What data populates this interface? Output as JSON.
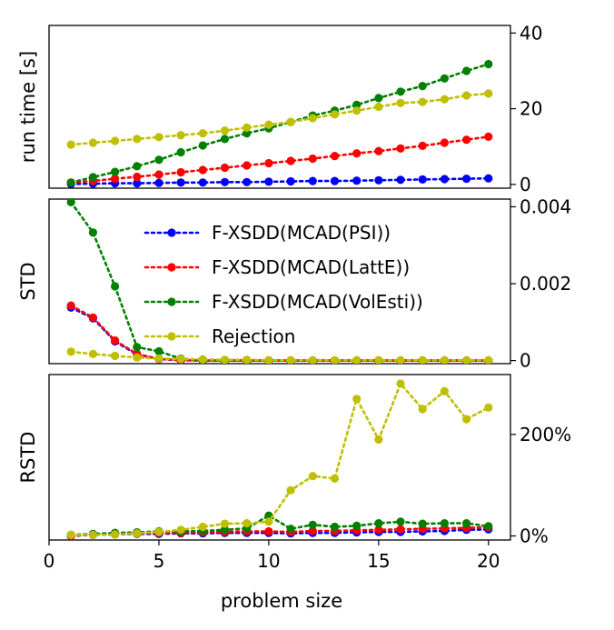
{
  "x_axis": {
    "label": "problem size",
    "ticks": [
      0,
      5,
      10,
      15,
      20
    ],
    "range": [
      0,
      21
    ]
  },
  "legend": {
    "placement": "upper right of middle panel",
    "entries": [
      {
        "name": "F-XSDD(MCAD(PSI))",
        "color": "#0000ff"
      },
      {
        "name": "F-XSDD(MCAD(LattE))",
        "color": "#ff0000"
      },
      {
        "name": "F-XSDD(MCAD(VolEsti))",
        "color": "#008000"
      },
      {
        "name": "Rejection",
        "color": "#bfbf00"
      }
    ]
  },
  "chart_data": [
    {
      "type": "line",
      "ylabel": "run time [s]",
      "yaxis_side": "right",
      "ylim": [
        -1,
        42
      ],
      "yticks": [
        0,
        20,
        40
      ],
      "ytick_labels": [
        "0",
        "20",
        "40"
      ],
      "x": [
        1,
        2,
        3,
        4,
        5,
        6,
        7,
        8,
        9,
        10,
        11,
        12,
        13,
        14,
        15,
        16,
        17,
        18,
        19,
        20
      ],
      "series": [
        {
          "name": "F-XSDD(MCAD(PSI))",
          "color": "#0000ff",
          "values": [
            0.1,
            0.2,
            0.3,
            0.3,
            0.4,
            0.5,
            0.5,
            0.6,
            0.6,
            0.7,
            0.8,
            0.9,
            0.9,
            1.0,
            1.1,
            1.2,
            1.3,
            1.4,
            1.5,
            1.6
          ]
        },
        {
          "name": "F-XSDD(MCAD(LattE))",
          "color": "#ff0000",
          "values": [
            0.5,
            0.9,
            1.5,
            2.0,
            2.6,
            3.2,
            3.8,
            4.4,
            5.0,
            5.6,
            6.2,
            6.8,
            7.5,
            8.2,
            8.8,
            9.5,
            10.2,
            11.0,
            11.8,
            12.6
          ]
        },
        {
          "name": "F-XSDD(MCAD(VolEsti))",
          "color": "#008000",
          "values": [
            0.5,
            1.9,
            3.3,
            4.8,
            6.5,
            8.5,
            10.3,
            12.0,
            13.5,
            14.8,
            16.5,
            18.2,
            19.5,
            21.0,
            22.8,
            24.5,
            26.0,
            28.0,
            30.0,
            31.8
          ]
        },
        {
          "name": "Rejection",
          "color": "#bfbf00",
          "values": [
            10.5,
            11.0,
            11.5,
            12.0,
            12.5,
            13.0,
            13.5,
            14.2,
            15.0,
            15.8,
            16.5,
            17.5,
            18.5,
            19.5,
            20.5,
            21.5,
            21.8,
            22.5,
            23.5,
            24.0
          ]
        }
      ]
    },
    {
      "type": "line",
      "ylabel": "STD",
      "yaxis_side": "right",
      "ylim": [
        -8e-05,
        0.0042
      ],
      "yticks": [
        0,
        0.002,
        0.004
      ],
      "ytick_labels": [
        "0",
        "0.002",
        "0.004"
      ],
      "x": [
        1,
        2,
        3,
        4,
        5,
        6,
        7,
        8,
        9,
        10,
        11,
        12,
        13,
        14,
        15,
        16,
        17,
        18,
        19,
        20
      ],
      "series": [
        {
          "name": "F-XSDD(MCAD(PSI))",
          "color": "#0000ff",
          "values": [
            0.00138,
            0.0011,
            0.0005,
            0.00016,
            4e-05,
            1e-05,
            0,
            0,
            0,
            0,
            0,
            0,
            0,
            0,
            0,
            0,
            0,
            0,
            0,
            0
          ]
        },
        {
          "name": "F-XSDD(MCAD(LattE))",
          "color": "#ff0000",
          "values": [
            0.00143,
            0.00112,
            0.00052,
            0.00017,
            4e-05,
            1e-05,
            0,
            0,
            0,
            0,
            0,
            0,
            0,
            0,
            0,
            0,
            0,
            0,
            0,
            0
          ]
        },
        {
          "name": "F-XSDD(MCAD(VolEsti))",
          "color": "#008000",
          "values": [
            0.00412,
            0.00333,
            0.00193,
            0.00035,
            0.00024,
            5e-05,
            1e-05,
            0,
            0,
            0,
            0,
            0,
            0,
            0,
            0,
            0,
            0,
            0,
            0,
            0
          ]
        },
        {
          "name": "Rejection",
          "color": "#bfbf00",
          "values": [
            0.00023,
            0.00017,
            0.00012,
            8e-05,
            5e-05,
            4e-05,
            3e-05,
            2e-05,
            2e-05,
            1e-05,
            1e-05,
            1e-05,
            1e-05,
            1e-05,
            1e-05,
            1e-05,
            1e-05,
            1e-05,
            1e-05,
            1e-05
          ]
        }
      ]
    },
    {
      "type": "line",
      "ylabel": "RSTD",
      "yaxis_side": "right",
      "ylim": [
        -0.08,
        3.18
      ],
      "yticks": [
        0,
        2
      ],
      "ytick_labels": [
        "0%",
        "200%"
      ],
      "x": [
        1,
        2,
        3,
        4,
        5,
        6,
        7,
        8,
        9,
        10,
        11,
        12,
        13,
        14,
        15,
        16,
        17,
        18,
        19,
        20
      ],
      "series": [
        {
          "name": "F-XSDD(MCAD(PSI))",
          "color": "#0000ff",
          "values": [
            0.0,
            0.02,
            0.03,
            0.04,
            0.04,
            0.05,
            0.05,
            0.06,
            0.06,
            0.06,
            0.05,
            0.06,
            0.06,
            0.07,
            0.08,
            0.08,
            0.09,
            0.1,
            0.12,
            0.13
          ]
        },
        {
          "name": "F-XSDD(MCAD(LattE))",
          "color": "#ff0000",
          "values": [
            0.0,
            0.03,
            0.04,
            0.05,
            0.06,
            0.06,
            0.07,
            0.08,
            0.09,
            0.09,
            0.08,
            0.1,
            0.1,
            0.11,
            0.12,
            0.13,
            0.14,
            0.15,
            0.16,
            0.17
          ]
        },
        {
          "name": "F-XSDD(MCAD(VolEsti))",
          "color": "#008000",
          "values": [
            0.02,
            0.04,
            0.06,
            0.07,
            0.09,
            0.09,
            0.1,
            0.12,
            0.15,
            0.4,
            0.14,
            0.22,
            0.18,
            0.2,
            0.25,
            0.28,
            0.24,
            0.25,
            0.25,
            0.19
          ]
        },
        {
          "name": "Rejection",
          "color": "#bfbf00",
          "values": [
            0.02,
            0.02,
            0.03,
            0.05,
            0.08,
            0.12,
            0.18,
            0.24,
            0.25,
            0.28,
            0.9,
            1.18,
            1.13,
            2.7,
            1.9,
            3.0,
            2.5,
            2.85,
            2.3,
            2.53
          ]
        }
      ]
    }
  ]
}
